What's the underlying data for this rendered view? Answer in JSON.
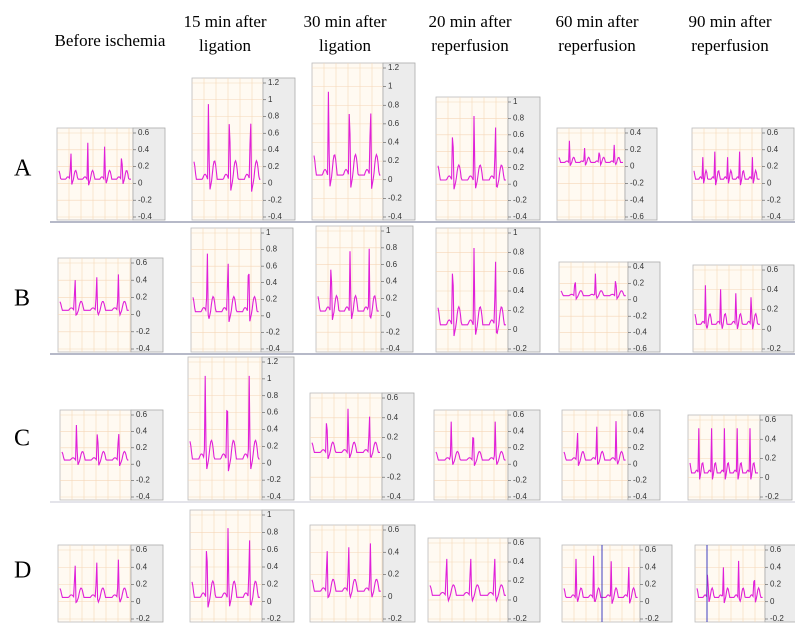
{
  "columns": [
    [
      "Before ischemia"
    ],
    [
      "15 min after",
      "ligation"
    ],
    [
      "30 min after",
      "ligation"
    ],
    [
      "20 min after",
      "reperfusion"
    ],
    [
      "60 min after",
      "reperfusion"
    ],
    [
      "90 min after",
      "reperfusion"
    ]
  ],
  "rows": [
    {
      "label": "A",
      "panels": [
        {
          "yticks": [
            0.6,
            0.4,
            0.2,
            0,
            -0.2,
            -0.4
          ]
        },
        {
          "yticks": [
            1.2,
            1,
            0.8,
            0.6,
            0.4,
            0.2,
            0,
            -0.2,
            -0.4
          ]
        },
        {
          "yticks": [
            1.2,
            1,
            0.8,
            0.6,
            0.4,
            0.2,
            0,
            -0.2,
            -0.4
          ]
        },
        {
          "yticks": [
            1,
            0.8,
            0.6,
            0.4,
            0.2,
            0,
            -0.2,
            -0.4
          ]
        },
        {
          "yticks": [
            0.4,
            0.2,
            0,
            -0.2,
            -0.4,
            -0.6
          ]
        },
        {
          "yticks": [
            0.6,
            0.4,
            0.2,
            0,
            -0.2,
            -0.4
          ]
        }
      ]
    },
    {
      "label": "B",
      "panels": [
        {
          "yticks": [
            0.6,
            0.4,
            0.2,
            0,
            -0.2,
            -0.4
          ]
        },
        {
          "yticks": [
            1,
            0.8,
            0.6,
            0.4,
            0.2,
            0,
            -0.2,
            -0.4
          ]
        },
        {
          "yticks": [
            1,
            0.8,
            0.6,
            0.4,
            0.2,
            0,
            -0.2,
            -0.4
          ]
        },
        {
          "yticks": [
            1,
            0.8,
            0.6,
            0.4,
            0.2,
            0,
            -0.2
          ]
        },
        {
          "yticks": [
            0.4,
            0.2,
            0,
            -0.2,
            -0.4,
            -0.6
          ]
        },
        {
          "yticks": [
            0.6,
            0.4,
            0.2,
            0,
            -0.2
          ]
        }
      ]
    },
    {
      "label": "C",
      "panels": [
        {
          "yticks": [
            0.6,
            0.4,
            0.2,
            0,
            -0.2,
            -0.4
          ]
        },
        {
          "yticks": [
            1.2,
            1,
            0.8,
            0.6,
            0.4,
            0.2,
            0,
            -0.2,
            -0.4
          ]
        },
        {
          "yticks": [
            0.6,
            0.4,
            0.2,
            0,
            -0.2,
            -0.4
          ]
        },
        {
          "yticks": [
            0.6,
            0.4,
            0.2,
            0,
            -0.2,
            -0.4
          ]
        },
        {
          "yticks": [
            0.6,
            0.4,
            0.2,
            0,
            -0.2,
            -0.4
          ]
        },
        {
          "yticks": [
            0.6,
            0.4,
            0.2,
            0,
            -0.2
          ]
        }
      ]
    },
    {
      "label": "D",
      "panels": [
        {
          "yticks": [
            0.6,
            0.4,
            0.2,
            0,
            -0.2
          ]
        },
        {
          "yticks": [
            1,
            0.8,
            0.6,
            0.4,
            0.2,
            0,
            -0.2
          ]
        },
        {
          "yticks": [
            0.6,
            0.4,
            0.2,
            0,
            -0.2
          ]
        },
        {
          "yticks": [
            0.6,
            0.4,
            0.2,
            0,
            -0.2
          ]
        },
        {
          "yticks": [
            0.6,
            0.4,
            0.2,
            0,
            -0.2
          ]
        },
        {
          "yticks": [
            0.6,
            0.4,
            0.2,
            0,
            -0.2
          ]
        }
      ]
    }
  ]
}
